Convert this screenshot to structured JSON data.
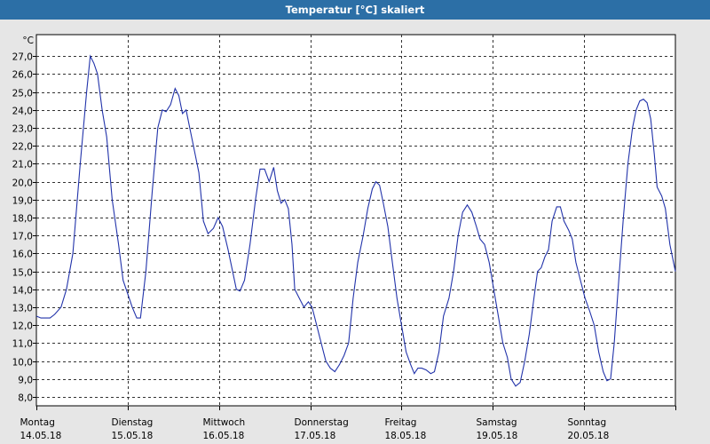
{
  "window": {
    "title": "Temperatur [°C] skaliert"
  },
  "colors": {
    "line": "#2233aa",
    "plot_bg": "#ffffff",
    "titlebar": "#2c6fa6",
    "grid": "#333333"
  },
  "chart_data": {
    "type": "line",
    "title": "Temperatur [°C] skaliert",
    "ylabel": "°C",
    "ylim": [
      7.5,
      28.2
    ],
    "yticks": [
      "8,0",
      "9,0",
      "10,0",
      "11,0",
      "12,0",
      "13,0",
      "14,0",
      "15,0",
      "16,0",
      "17,0",
      "18,0",
      "19,0",
      "20,0",
      "21,0",
      "22,0",
      "23,0",
      "24,0",
      "25,0",
      "26,0",
      "27,0"
    ],
    "ytick_values": [
      8,
      9,
      10,
      11,
      12,
      13,
      14,
      15,
      16,
      17,
      18,
      19,
      20,
      21,
      22,
      23,
      24,
      25,
      26,
      27
    ],
    "xlim": [
      0,
      7
    ],
    "days": [
      {
        "name": "Montag",
        "date": "14.05.18"
      },
      {
        "name": "Dienstag",
        "date": "15.05.18"
      },
      {
        "name": "Mittwoch",
        "date": "16.05.18"
      },
      {
        "name": "Donnerstag",
        "date": "17.05.18"
      },
      {
        "name": "Freitag",
        "date": "18.05.18"
      },
      {
        "name": "Samstag",
        "date": "19.05.18"
      },
      {
        "name": "Sonntag",
        "date": "20.05.18"
      }
    ],
    "grid": true,
    "series": [
      {
        "values": [
          [
            0.0,
            12.5
          ],
          [
            0.05,
            12.4
          ],
          [
            0.15,
            12.4
          ],
          [
            0.2,
            12.6
          ],
          [
            0.27,
            13.0
          ],
          [
            0.33,
            14.0
          ],
          [
            0.4,
            16.0
          ],
          [
            0.48,
            21.0
          ],
          [
            0.55,
            25.0
          ],
          [
            0.59,
            27.0
          ],
          [
            0.63,
            26.6
          ],
          [
            0.67,
            26.0
          ],
          [
            0.72,
            24.0
          ],
          [
            0.77,
            22.5
          ],
          [
            0.83,
            19.0
          ],
          [
            0.9,
            16.5
          ],
          [
            0.95,
            14.5
          ],
          [
            1.05,
            13.0
          ],
          [
            1.1,
            12.4
          ],
          [
            1.14,
            12.4
          ],
          [
            1.2,
            15.0
          ],
          [
            1.27,
            19.5
          ],
          [
            1.33,
            23.0
          ],
          [
            1.38,
            24.0
          ],
          [
            1.42,
            23.9
          ],
          [
            1.47,
            24.3
          ],
          [
            1.52,
            25.2
          ],
          [
            1.56,
            24.8
          ],
          [
            1.6,
            23.8
          ],
          [
            1.64,
            24.0
          ],
          [
            1.68,
            23.0
          ],
          [
            1.74,
            21.5
          ],
          [
            1.78,
            20.5
          ],
          [
            1.83,
            17.8
          ],
          [
            1.88,
            17.1
          ],
          [
            1.94,
            17.4
          ],
          [
            1.99,
            18.0
          ],
          [
            2.04,
            17.5
          ],
          [
            2.1,
            16.2
          ],
          [
            2.15,
            15.0
          ],
          [
            2.19,
            14.0
          ],
          [
            2.23,
            13.9
          ],
          [
            2.28,
            14.5
          ],
          [
            2.34,
            16.5
          ],
          [
            2.4,
            19.0
          ],
          [
            2.45,
            20.7
          ],
          [
            2.5,
            20.7
          ],
          [
            2.55,
            20.0
          ],
          [
            2.6,
            20.8
          ],
          [
            2.64,
            19.5
          ],
          [
            2.68,
            18.8
          ],
          [
            2.72,
            19.0
          ],
          [
            2.76,
            18.5
          ],
          [
            2.8,
            16.5
          ],
          [
            2.83,
            14.0
          ],
          [
            2.88,
            13.5
          ],
          [
            2.93,
            13.0
          ],
          [
            2.98,
            13.3
          ],
          [
            3.02,
            13.0
          ],
          [
            3.07,
            12.0
          ],
          [
            3.12,
            11.0
          ],
          [
            3.17,
            10.0
          ],
          [
            3.22,
            9.6
          ],
          [
            3.27,
            9.4
          ],
          [
            3.32,
            9.8
          ],
          [
            3.37,
            10.3
          ],
          [
            3.42,
            11.0
          ],
          [
            3.47,
            13.5
          ],
          [
            3.52,
            15.5
          ],
          [
            3.58,
            17.0
          ],
          [
            3.63,
            18.5
          ],
          [
            3.68,
            19.6
          ],
          [
            3.72,
            20.0
          ],
          [
            3.76,
            19.8
          ],
          [
            3.8,
            18.8
          ],
          [
            3.85,
            17.5
          ],
          [
            3.9,
            15.5
          ],
          [
            3.95,
            13.5
          ],
          [
            4.0,
            12.0
          ],
          [
            4.05,
            10.5
          ],
          [
            4.1,
            9.8
          ],
          [
            4.14,
            9.3
          ],
          [
            4.18,
            9.6
          ],
          [
            4.22,
            9.6
          ],
          [
            4.27,
            9.5
          ],
          [
            4.32,
            9.3
          ],
          [
            4.36,
            9.4
          ],
          [
            4.41,
            10.5
          ],
          [
            4.46,
            12.5
          ],
          [
            4.52,
            13.5
          ],
          [
            4.57,
            15.0
          ],
          [
            4.62,
            17.0
          ],
          [
            4.67,
            18.3
          ],
          [
            4.72,
            18.7
          ],
          [
            4.77,
            18.3
          ],
          [
            4.82,
            17.5
          ],
          [
            4.86,
            16.8
          ],
          [
            4.91,
            16.5
          ],
          [
            4.96,
            15.5
          ],
          [
            5.01,
            14.0
          ],
          [
            5.06,
            12.5
          ],
          [
            5.11,
            11.0
          ],
          [
            5.16,
            10.2
          ],
          [
            5.2,
            9.0
          ],
          [
            5.25,
            8.6
          ],
          [
            5.3,
            8.8
          ],
          [
            5.35,
            10.0
          ],
          [
            5.4,
            11.5
          ],
          [
            5.45,
            13.5
          ],
          [
            5.49,
            15.0
          ],
          [
            5.53,
            15.2
          ],
          [
            5.57,
            15.8
          ],
          [
            5.61,
            16.2
          ],
          [
            5.65,
            17.8
          ],
          [
            5.7,
            18.6
          ],
          [
            5.74,
            18.6
          ],
          [
            5.78,
            17.8
          ],
          [
            5.83,
            17.3
          ],
          [
            5.87,
            16.8
          ],
          [
            5.91,
            15.5
          ],
          [
            5.96,
            14.5
          ],
          [
            6.01,
            13.5
          ],
          [
            6.06,
            12.8
          ],
          [
            6.11,
            12.0
          ],
          [
            6.16,
            10.5
          ],
          [
            6.21,
            9.4
          ],
          [
            6.25,
            8.9
          ],
          [
            6.29,
            9.0
          ],
          [
            6.33,
            11.0
          ],
          [
            6.38,
            14.5
          ],
          [
            6.43,
            18.0
          ],
          [
            6.48,
            21.0
          ],
          [
            6.53,
            23.0
          ],
          [
            6.57,
            24.0
          ],
          [
            6.61,
            24.5
          ],
          [
            6.65,
            24.6
          ],
          [
            6.69,
            24.4
          ],
          [
            6.73,
            23.5
          ],
          [
            6.77,
            21.5
          ],
          [
            6.8,
            19.7
          ],
          [
            6.85,
            19.2
          ],
          [
            6.89,
            18.5
          ],
          [
            6.94,
            16.5
          ],
          [
            6.98,
            15.5
          ],
          [
            7.0,
            15.0
          ]
        ]
      }
    ]
  }
}
